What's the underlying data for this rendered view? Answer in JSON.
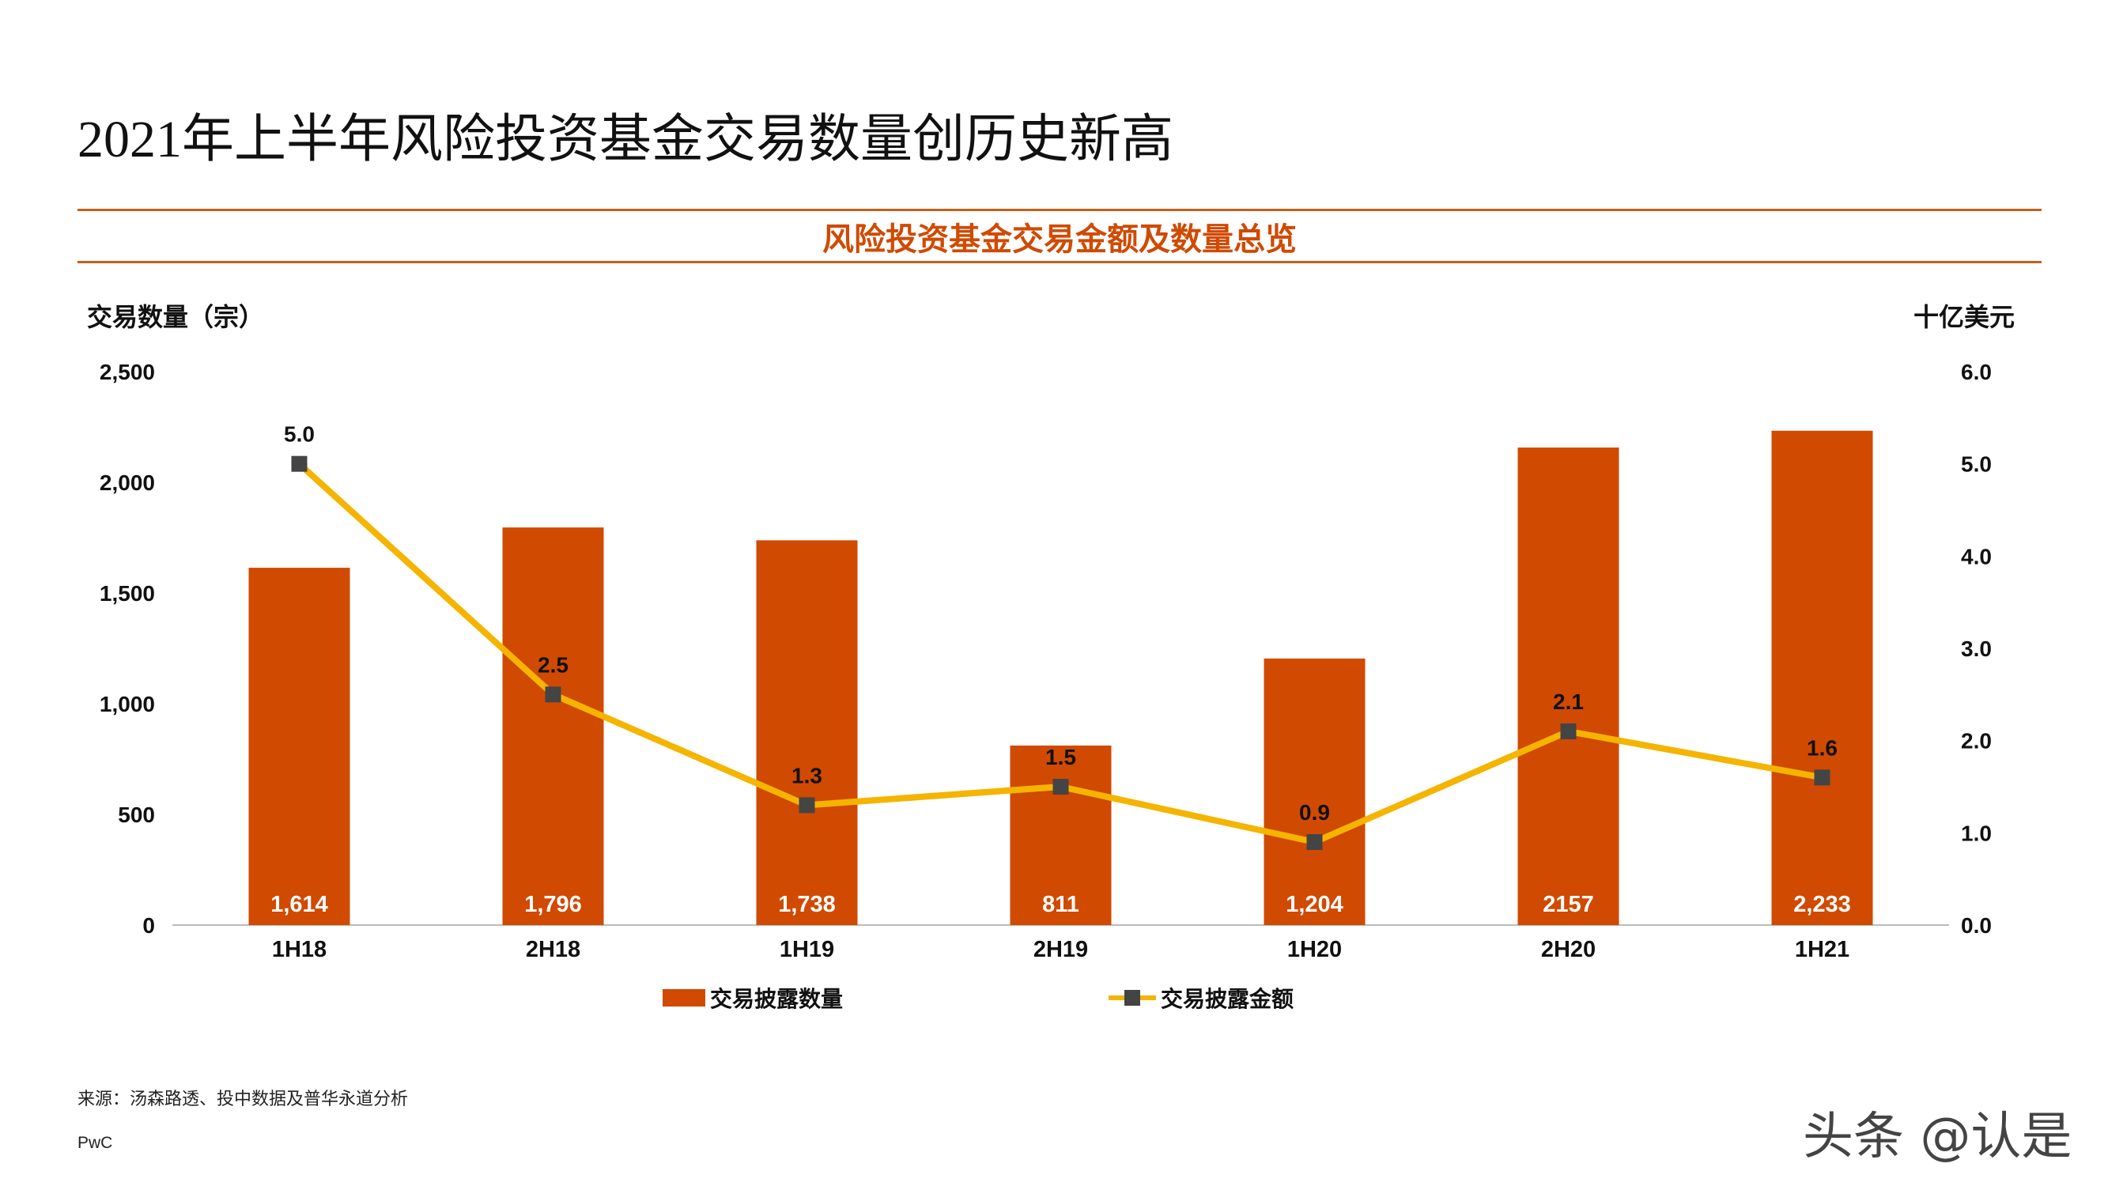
{
  "title": "2021年上半年风险投资基金交易数量创历史新高",
  "subtitle": "风险投资基金交易金额及数量总览",
  "source": "来源：汤森路透、投中数据及普华永道分析",
  "brand": "PwC",
  "watermark": "头条 @认是",
  "colors": {
    "bar": "#d04a02",
    "line": "#f5b400",
    "marker": "#444444",
    "rule": "#c2611a"
  },
  "chart_data": {
    "type": "bar",
    "categories": [
      "1H18",
      "2H18",
      "1H19",
      "2H19",
      "1H20",
      "2H20",
      "1H21"
    ],
    "y_left_label": "交易数量（宗）",
    "y_right_label": "十亿美元",
    "y_left_ticks": [
      "2,500",
      "2,000",
      "1,500",
      "1,000",
      "500",
      "0"
    ],
    "y_right_ticks": [
      "6.0",
      "5.0",
      "4.0",
      "3.0",
      "2.0",
      "1.0",
      "0.0"
    ],
    "ylim_left": [
      0,
      2500
    ],
    "ylim_right": [
      0,
      6
    ],
    "series": [
      {
        "name": "交易披露数量",
        "type": "bar",
        "axis": "left",
        "values": [
          1614,
          1796,
          1738,
          811,
          1204,
          2157,
          2233
        ],
        "labels": [
          "1,614",
          "1,796",
          "1,738",
          "811",
          "1,204",
          "2157",
          "2,233"
        ]
      },
      {
        "name": "交易披露金额",
        "type": "line",
        "axis": "right",
        "values": [
          5.0,
          2.5,
          1.3,
          1.5,
          0.9,
          2.1,
          1.6
        ],
        "labels": [
          "5.0",
          "2.5",
          "1.3",
          "1.5",
          "0.9",
          "2.1",
          "1.6"
        ]
      }
    ],
    "legend_position": "bottom"
  }
}
